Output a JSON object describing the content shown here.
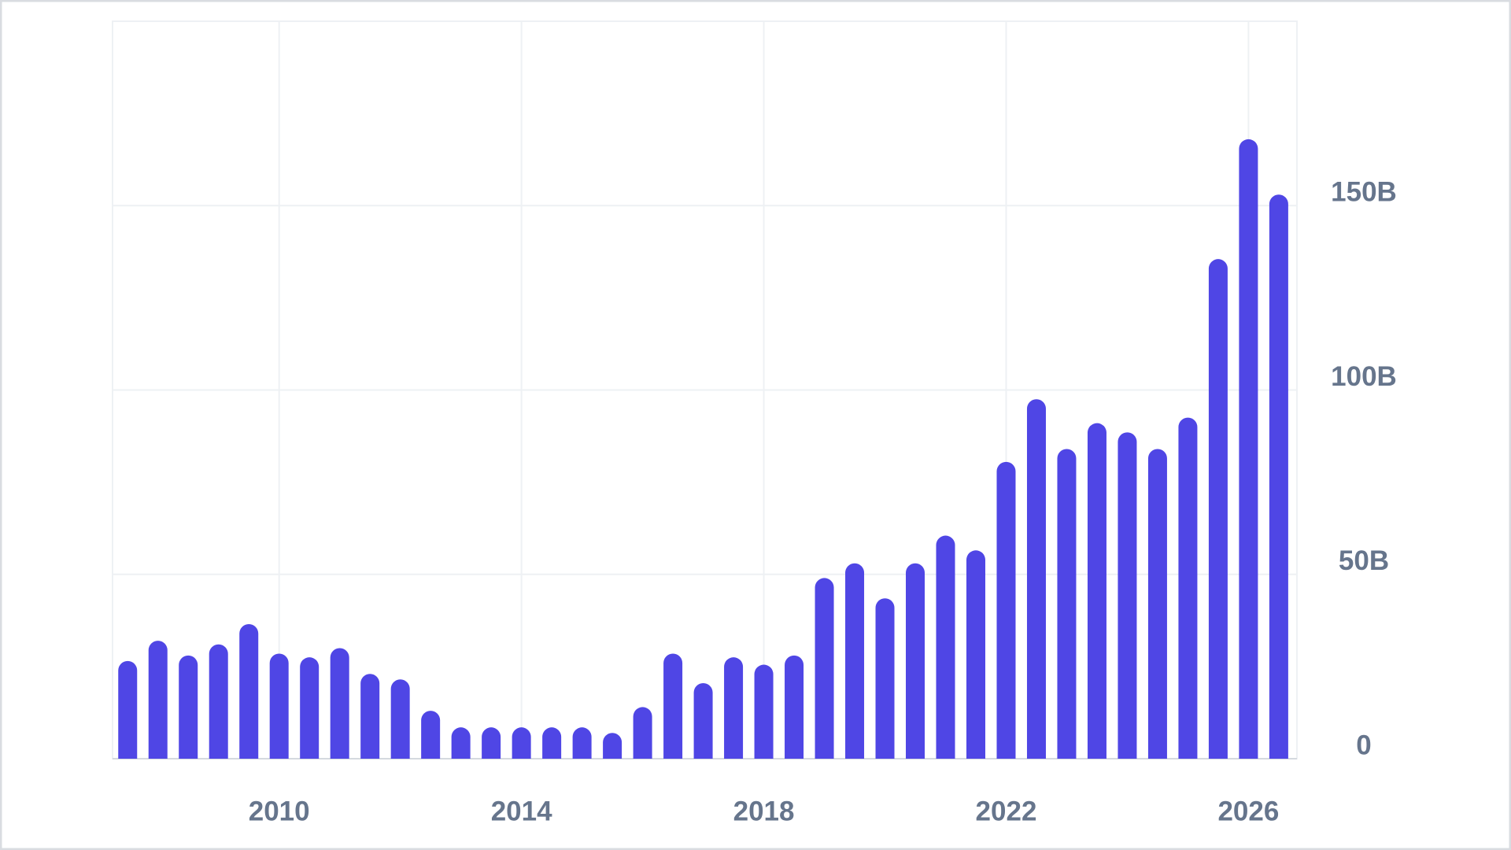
{
  "chart_data": {
    "type": "bar",
    "x": [
      2007.5,
      2008,
      2008.5,
      2009,
      2009.5,
      2010,
      2010.5,
      2011,
      2011.5,
      2012,
      2012.5,
      2013,
      2013.5,
      2014,
      2014.5,
      2015,
      2015.5,
      2016,
      2016.5,
      2017,
      2017.5,
      2018,
      2018.5,
      2019,
      2019.5,
      2020,
      2020.5,
      2021,
      2021.5,
      2022,
      2022.5,
      2023,
      2023.5,
      2024,
      2024.5,
      2025,
      2025.5,
      2026,
      2026.5
    ],
    "values": [
      26.5,
      32,
      28,
      31,
      36.5,
      28.5,
      27.5,
      30,
      23,
      21.5,
      13,
      8.5,
      8.5,
      8.5,
      8.5,
      8.5,
      7,
      14,
      28.5,
      20.5,
      27.5,
      25.5,
      28,
      49,
      53,
      43.5,
      53,
      60.5,
      56.5,
      80.5,
      97.5,
      84,
      91,
      88.5,
      84,
      92.5,
      135.5,
      168,
      153
    ],
    "color": "#4f46e5",
    "xlim": [
      2007.25,
      2026.8
    ],
    "xticks": [
      2010,
      2014,
      2018,
      2022,
      2026
    ],
    "ylim": [
      0,
      200
    ],
    "yticks": [
      0,
      {
        "value": 50,
        "label": "50B"
      },
      {
        "value": 100,
        "label": "100B"
      },
      {
        "value": 150,
        "label": "150B"
      }
    ],
    "grid": true
  }
}
